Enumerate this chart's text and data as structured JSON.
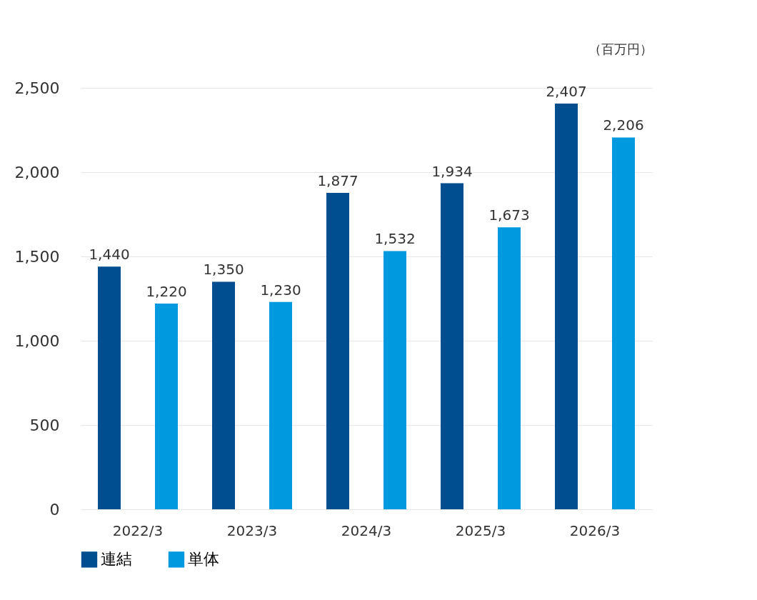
{
  "chart_data": {
    "type": "bar",
    "ylabel": "（百万円）",
    "categories": [
      "2022/3",
      "2023/3",
      "2024/3",
      "2025/3",
      "2026/3"
    ],
    "series": [
      {
        "name": "連結",
        "color": "#004e8f",
        "values": [
          1440,
          1350,
          1877,
          1934,
          2407
        ],
        "value_labels": [
          "1,440",
          "1,350",
          "1,877",
          "1,934",
          "2,407"
        ]
      },
      {
        "name": "単体",
        "color": "#0099e0",
        "values": [
          1220,
          1230,
          1532,
          1673,
          2206
        ],
        "value_labels": [
          "1,220",
          "1,230",
          "1,532",
          "1,673",
          "2,206"
        ]
      }
    ],
    "ylim": [
      0,
      2500
    ],
    "yticks": [
      0,
      {
        "value": 500,
        "label": "500"
      },
      {
        "value": 1000,
        "label": "1,000"
      },
      {
        "value": 1500,
        "label": "1,500"
      },
      {
        "value": 2000,
        "label": "2,000"
      },
      {
        "value": 2500,
        "label": "2,500"
      }
    ],
    "grid": "y",
    "legend": "bottom"
  }
}
